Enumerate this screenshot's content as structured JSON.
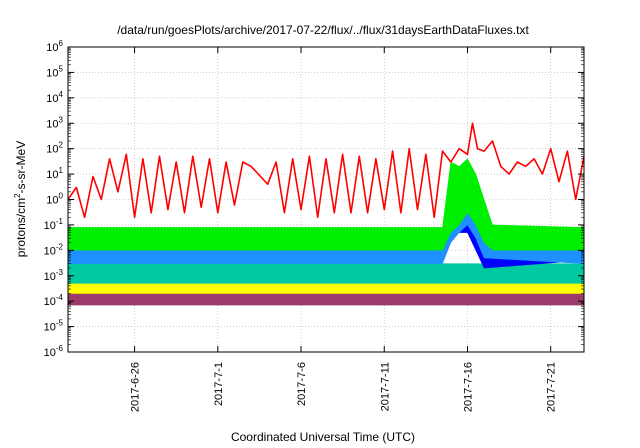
{
  "chart_data": {
    "type": "line",
    "title": "/data/run/goesPlots/archive/2017-07-22/flux/../flux/31daysEarthDataFluxes.txt",
    "xlabel": "Coordinated Universal Time (UTC)",
    "ylabel": {
      "prefix": "protons/cm",
      "superscript": "2",
      "suffix": "-s-sr-MeV"
    },
    "x_range": [
      "2017-06-22",
      "2017-07-23"
    ],
    "x_ticks": [
      "2017-6-26",
      "2017-7-1",
      "2017-7-6",
      "2017-7-11",
      "2017-7-16",
      "2017-7-21"
    ],
    "y_scale": "log",
    "ylim": [
      1e-06,
      1000000.0
    ],
    "y_ticks": [
      {
        "base": "10",
        "exp": "-6"
      },
      {
        "base": "10",
        "exp": "-5"
      },
      {
        "base": "10",
        "exp": "-4"
      },
      {
        "base": "10",
        "exp": "-3"
      },
      {
        "base": "10",
        "exp": "-2"
      },
      {
        "base": "10",
        "exp": "-1"
      },
      {
        "base": "10",
        "exp": "0"
      },
      {
        "base": "10",
        "exp": "1"
      },
      {
        "base": "10",
        "exp": "2"
      },
      {
        "base": "10",
        "exp": "3"
      },
      {
        "base": "10",
        "exp": "4"
      },
      {
        "base": "10",
        "exp": "5"
      },
      {
        "base": "10",
        "exp": "6"
      }
    ],
    "grid": true,
    "colors": {
      "red": "#ff0000",
      "green": "#00ee00",
      "light_blue": "#1e90ff",
      "blue": "#0000ff",
      "teal": "#00c8a0",
      "yellow": "#ffff00",
      "maroon": "#9b3b6b"
    },
    "series": [
      {
        "color": "red",
        "style": "line",
        "points": [
          [
            "2017-06-22",
            1.0
          ],
          [
            "2017-06-22.5",
            3.0
          ],
          [
            "2017-06-23",
            0.2
          ],
          [
            "2017-06-23.5",
            8.0
          ],
          [
            "2017-06-24",
            1.0
          ],
          [
            "2017-06-24.5",
            40
          ],
          [
            "2017-06-25",
            2.0
          ],
          [
            "2017-06-25.5",
            60
          ],
          [
            "2017-06-26",
            0.2
          ],
          [
            "2017-06-26.5",
            40
          ],
          [
            "2017-06-27",
            0.3
          ],
          [
            "2017-06-27.5",
            50
          ],
          [
            "2017-06-28",
            0.4
          ],
          [
            "2017-06-28.5",
            30
          ],
          [
            "2017-06-29",
            0.3
          ],
          [
            "2017-06-29.5",
            50
          ],
          [
            "2017-06-30",
            0.5
          ],
          [
            "2017-06-30.5",
            40
          ],
          [
            "2017-07-01",
            0.3
          ],
          [
            "2017-07-01.5",
            30
          ],
          [
            "2017-07-02",
            0.6
          ],
          [
            "2017-07-02.5",
            30
          ],
          [
            "2017-07-03",
            20
          ],
          [
            "2017-07-04",
            4
          ],
          [
            "2017-07-04.5",
            30
          ],
          [
            "2017-07-05",
            0.3
          ],
          [
            "2017-07-05.5",
            40
          ],
          [
            "2017-07-06",
            0.4
          ],
          [
            "2017-07-06.5",
            50
          ],
          [
            "2017-07-07",
            0.2
          ],
          [
            "2017-07-07.5",
            40
          ],
          [
            "2017-07-08",
            0.3
          ],
          [
            "2017-07-08.5",
            60
          ],
          [
            "2017-07-09",
            0.3
          ],
          [
            "2017-07-09.5",
            50
          ],
          [
            "2017-07-10",
            0.3
          ],
          [
            "2017-07-10.5",
            40
          ],
          [
            "2017-07-11",
            0.4
          ],
          [
            "2017-07-11.5",
            80
          ],
          [
            "2017-07-12",
            0.3
          ],
          [
            "2017-07-12.5",
            100
          ],
          [
            "2017-07-13",
            0.4
          ],
          [
            "2017-07-13.5",
            60
          ],
          [
            "2017-07-14",
            0.2
          ],
          [
            "2017-07-14.5",
            80
          ],
          [
            "2017-07-15",
            30
          ],
          [
            "2017-07-15.5",
            100
          ],
          [
            "2017-07-16",
            60
          ],
          [
            "2017-07-16.3",
            1000
          ],
          [
            "2017-07-16.6",
            100
          ],
          [
            "2017-07-17",
            80
          ],
          [
            "2017-07-17.5",
            200
          ],
          [
            "2017-07-18",
            20
          ],
          [
            "2017-07-18.5",
            10
          ],
          [
            "2017-07-19",
            30
          ],
          [
            "2017-07-19.5",
            20
          ],
          [
            "2017-07-20",
            40
          ],
          [
            "2017-07-20.5",
            10
          ],
          [
            "2017-07-21",
            100
          ],
          [
            "2017-07-21.5",
            5
          ],
          [
            "2017-07-22",
            80
          ],
          [
            "2017-07-22.5",
            1
          ],
          [
            "2017-07-23",
            50
          ]
        ]
      },
      {
        "color": "green",
        "style": "band",
        "points": [
          [
            "2017-06-22",
            0.01,
            0.08
          ],
          [
            "2017-07-02.8",
            0.01,
            0.08
          ],
          [
            "2017-07-14.5",
            0.01,
            0.08
          ],
          [
            "2017-07-15",
            0.05,
            30
          ],
          [
            "2017-07-15.5",
            0.1,
            20
          ],
          [
            "2017-07-16",
            0.3,
            40
          ],
          [
            "2017-07-16.5",
            0.1,
            10
          ],
          [
            "2017-07-17",
            0.02,
            1
          ],
          [
            "2017-07-17.5",
            0.01,
            0.1
          ],
          [
            "2017-07-23",
            0.01,
            0.08
          ]
        ]
      },
      {
        "color": "light_blue",
        "style": "band",
        "points": [
          [
            "2017-06-22",
            0.003,
            0.05
          ],
          [
            "2017-07-02.8",
            0.003,
            0.05
          ],
          [
            "2017-07-14.5",
            0.003,
            0.05
          ],
          [
            "2017-07-15",
            0.02,
            5
          ],
          [
            "2017-07-15.5",
            0.05,
            3
          ],
          [
            "2017-07-16",
            0.1,
            4
          ],
          [
            "2017-07-16.5",
            0.03,
            1
          ],
          [
            "2017-07-17",
            0.005,
            0.1
          ],
          [
            "2017-07-23",
            0.003,
            0.05
          ]
        ]
      },
      {
        "color": "blue",
        "style": "band",
        "points": [
          [
            "2017-06-22",
            0.004,
            0.02
          ],
          [
            "2017-07-14.5",
            0.004,
            0.02
          ],
          [
            "2017-07-15",
            0.05,
            1
          ],
          [
            "2017-07-16",
            0.05,
            0.5
          ],
          [
            "2017-07-17",
            0.002,
            0.05
          ],
          [
            "2017-07-23",
            0.004,
            0.02
          ]
        ]
      },
      {
        "color": "teal",
        "style": "band",
        "points": [
          [
            "2017-06-22",
            0.0005,
            0.003
          ],
          [
            "2017-07-23",
            0.0005,
            0.003
          ]
        ]
      },
      {
        "color": "yellow",
        "style": "band",
        "points": [
          [
            "2017-06-22",
            0.0002,
            0.0006
          ],
          [
            "2017-07-23",
            0.0002,
            0.0006
          ]
        ]
      },
      {
        "color": "maroon",
        "style": "band",
        "points": [
          [
            "2017-06-22",
            7e-05,
            0.0003
          ],
          [
            "2017-07-23",
            7e-05,
            0.0003
          ]
        ]
      }
    ]
  }
}
